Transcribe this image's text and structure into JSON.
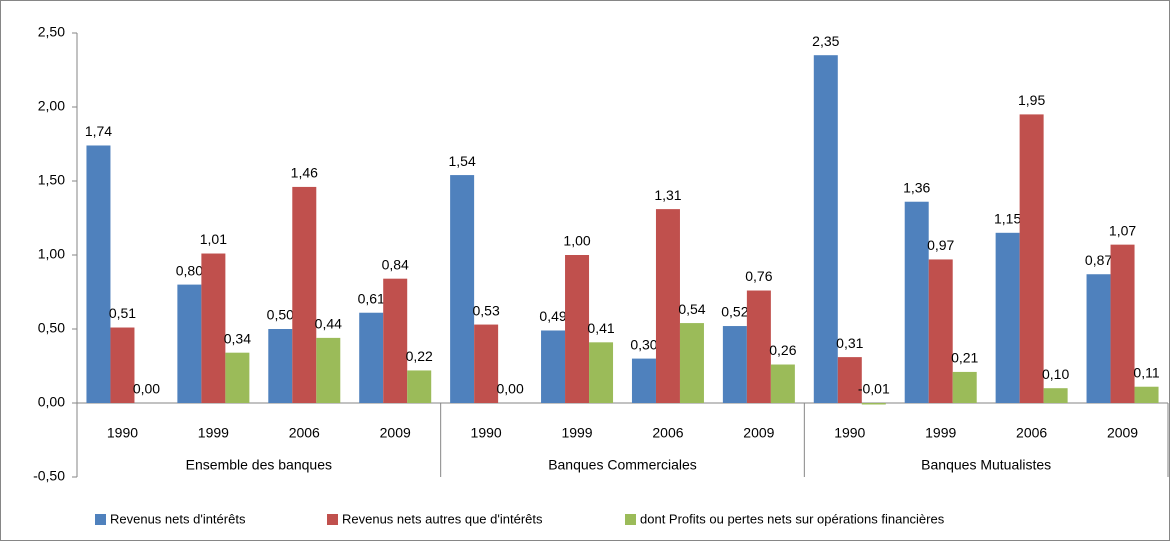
{
  "chart_data": {
    "type": "bar",
    "categories": [
      "1990",
      "1999",
      "2006",
      "2009",
      "1990",
      "1999",
      "2006",
      "2009",
      "1990",
      "1999",
      "2006",
      "2009"
    ],
    "groups": [
      "Ensemble des banques",
      "Banques Commerciales",
      "Banques Mutualistes"
    ],
    "series": [
      {
        "name": "Revenus nets d'intérêts",
        "color": "#4f81bd",
        "values": [
          1.74,
          0.8,
          0.5,
          0.61,
          1.54,
          0.49,
          0.3,
          0.52,
          2.35,
          1.36,
          1.15,
          0.87
        ],
        "value_labels": [
          "1,74",
          "0,80",
          "0,50",
          "0,61",
          "1,54",
          "0,49",
          "0,30",
          "0,52",
          "2,35",
          "1,36",
          "1,15",
          "0,87"
        ]
      },
      {
        "name": "Revenus nets autres que d'intérêts",
        "color": "#c0504d",
        "values": [
          0.51,
          1.01,
          1.46,
          0.84,
          0.53,
          1.0,
          1.31,
          0.76,
          0.31,
          0.97,
          1.95,
          1.07
        ],
        "value_labels": [
          "0,51",
          "1,01",
          "1,46",
          "0,84",
          "0,53",
          "1,00",
          "1,31",
          "0,76",
          "0,31",
          "0,97",
          "1,95",
          "1,07"
        ]
      },
      {
        "name": "dont Profits ou pertes nets sur opérations financières",
        "color": "#9bbb59",
        "values": [
          0.0,
          0.34,
          0.44,
          0.22,
          0.0,
          0.41,
          0.54,
          0.26,
          -0.01,
          0.21,
          0.1,
          0.11
        ],
        "value_labels": [
          "0,00",
          "0,34",
          "0,44",
          "0,22",
          "0,00",
          "0,41",
          "0,54",
          "0,26",
          "-0,01",
          "0,21",
          "0,10",
          "0,11"
        ]
      }
    ],
    "ylim": [
      -0.5,
      2.5
    ],
    "yticks": [
      {
        "value": -0.5,
        "label": "-0,50"
      },
      {
        "value": 0,
        "label": "0,00"
      },
      {
        "value": 0.5,
        "label": "0,50"
      },
      {
        "value": 1,
        "label": "1,00"
      },
      {
        "value": 1.5,
        "label": "1,50"
      },
      {
        "value": 2,
        "label": "2,00"
      },
      {
        "value": 2.5,
        "label": "2,50"
      }
    ],
    "legend": "bottom",
    "grid": false
  }
}
